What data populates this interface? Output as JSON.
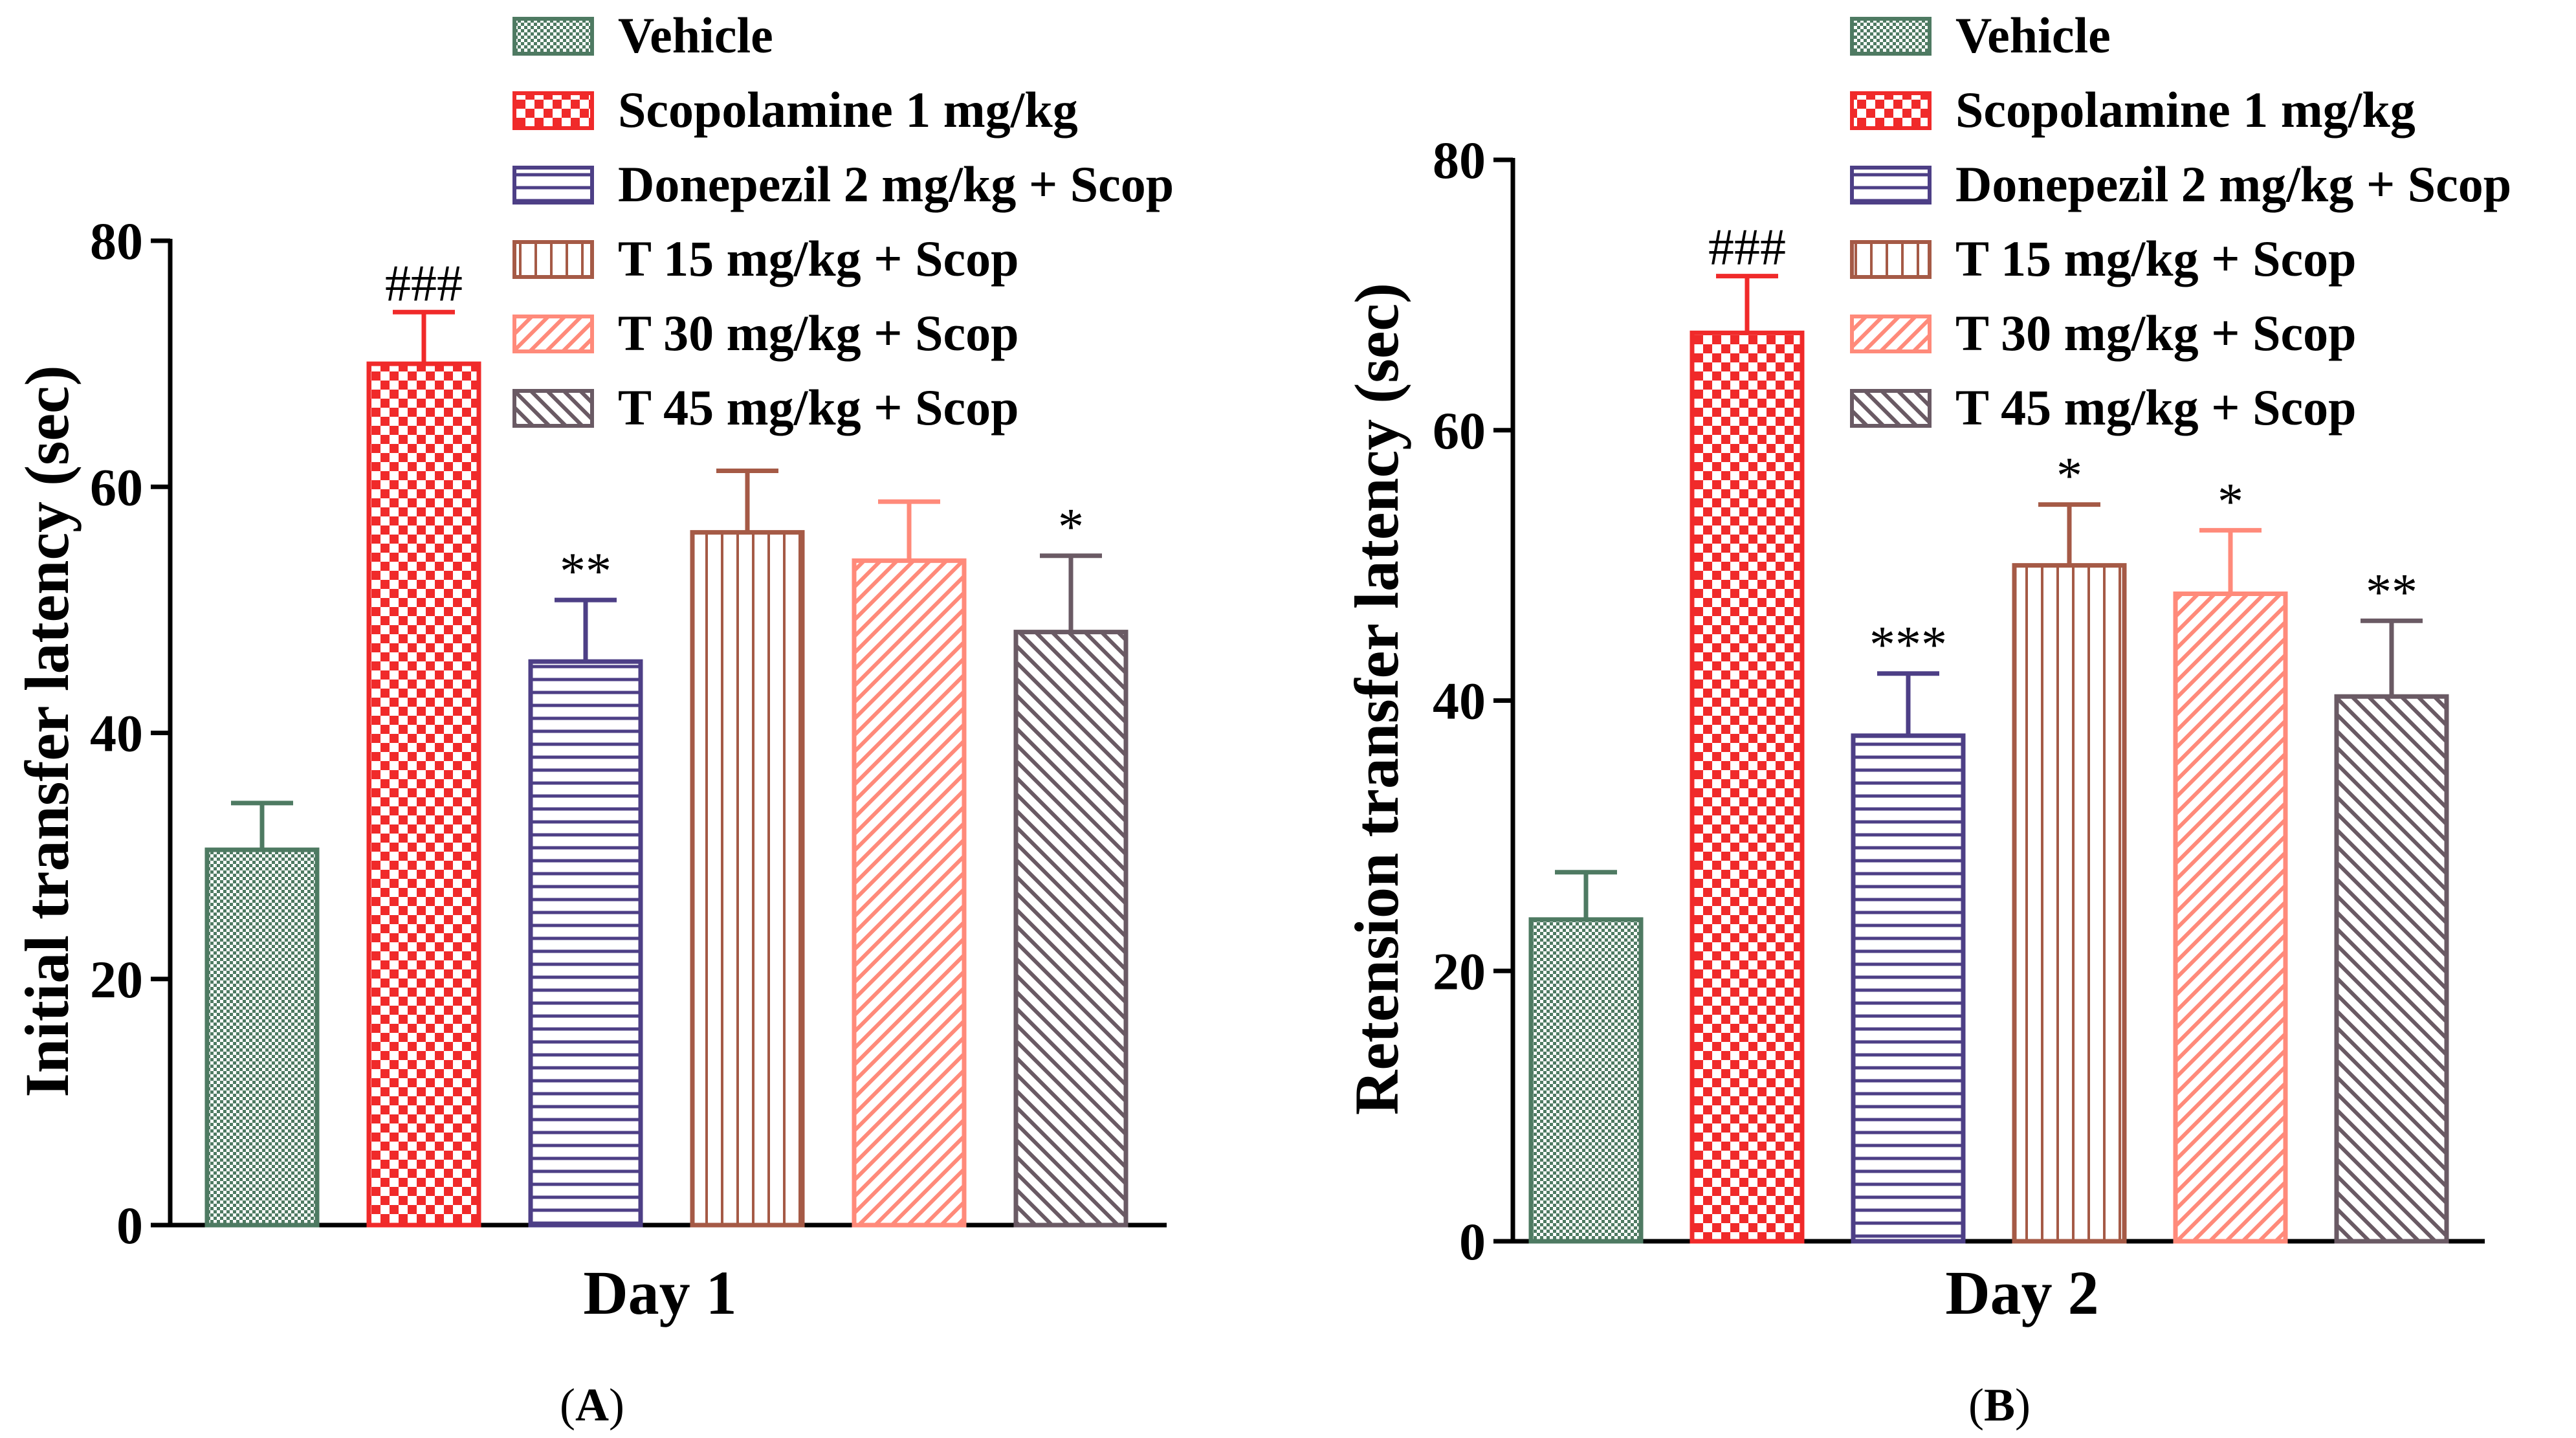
{
  "chart_data": [
    {
      "type": "bar",
      "panel": "(A)",
      "panel_letter": "A",
      "title": "",
      "xlabel": "Day 1",
      "ylabel": "Initial transfer latency (sec)",
      "ylim": [
        0,
        80
      ],
      "yticks": [
        0,
        20,
        40,
        60,
        80
      ],
      "categories": [
        "Vehicle",
        "Scopolamine 1 mg/kg",
        "Donepezil 2 mg/kg + Scop",
        "T 15 mg/kg + Scop",
        "T 30 mg/kg + Scop",
        "T 45 mg/kg + Scop"
      ],
      "values": [
        30.5,
        70,
        45.8,
        56.3,
        54,
        48.2
      ],
      "errors": [
        3.8,
        4.2,
        5.0,
        5.0,
        4.8,
        6.2
      ],
      "significance": [
        "",
        "###",
        "**",
        "",
        "",
        "*"
      ],
      "legend": [
        "Vehicle",
        "Scopolamine 1 mg/kg",
        "Donepezil 2 mg/kg + Scop",
        "T 15 mg/kg + Scop",
        "T 30 mg/kg + Scop",
        "T 45 mg/kg + Scop"
      ]
    },
    {
      "type": "bar",
      "panel": "(B)",
      "panel_letter": "B",
      "title": "",
      "xlabel": "Day 2",
      "ylabel": "Retension transfer latency (sec)",
      "ylim": [
        0,
        80
      ],
      "yticks": [
        0,
        20,
        40,
        60,
        80
      ],
      "categories": [
        "Vehicle",
        "Scopolamine 1 mg/kg",
        "Donepezil 2 mg/kg + Scop",
        "T 15 mg/kg + Scop",
        "T 30 mg/kg + Scop",
        "T 45 mg/kg + Scop"
      ],
      "values": [
        23.8,
        67.2,
        37.4,
        50,
        47.9,
        40.3
      ],
      "errors": [
        3.5,
        4.2,
        4.6,
        4.5,
        4.7,
        5.6
      ],
      "significance": [
        "",
        "###",
        "***",
        "*",
        "*",
        "**"
      ],
      "legend": [
        "Vehicle",
        "Scopolamine 1 mg/kg",
        "Donepezil 2 mg/kg + Scop",
        "T 15 mg/kg + Scop",
        "T 30 mg/kg + Scop",
        "T 45 mg/kg + Scop"
      ]
    }
  ],
  "colors": {
    "vehicle": "#4e7a62",
    "scopolamine": "#f02a2a",
    "donepezil": "#4d3f86",
    "t15": "#a55a46",
    "t30": "#ff8a7a",
    "t45": "#6a5a64"
  }
}
